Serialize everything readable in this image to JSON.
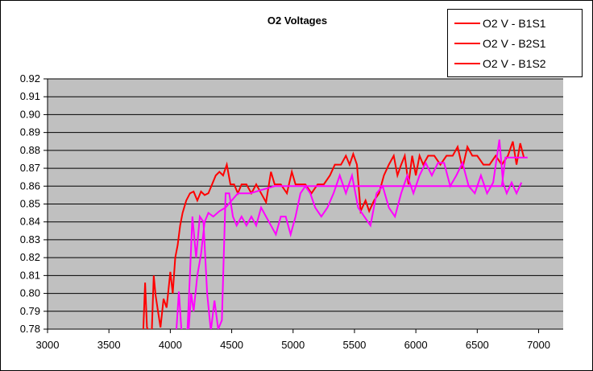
{
  "title": "O2 Voltages",
  "colors": {
    "plot_background": "#c0c0c0",
    "gridline": "#000000",
    "axis_text": "#000000",
    "red_series": "#ff0000",
    "magenta_series": "#ff00ff",
    "legend_key": "#ff0000"
  },
  "legend": {
    "position": "top-right",
    "items": [
      {
        "label": "O2 V - B1S1",
        "key_color": "#ff0000"
      },
      {
        "label": "O2 V - B2S1",
        "key_color": "#ff0000"
      },
      {
        "label": "O2 V - B1S2",
        "key_color": "#ff0000"
      }
    ]
  },
  "chart_data": {
    "type": "line",
    "title": "O2 Voltages",
    "xlabel": "",
    "ylabel": "",
    "grid": true,
    "legend_position": "top-right",
    "plot_background": "#c0c0c0",
    "x_axis": {
      "min": 3000,
      "max": 7200,
      "tick_values": [
        3000,
        3500,
        4000,
        4500,
        5000,
        5500,
        6000,
        6500,
        7000
      ],
      "tick_labels": [
        "3000",
        "3500",
        "4000",
        "4500",
        "5000",
        "5500",
        "6000",
        "6500",
        "7000"
      ]
    },
    "y_axis": {
      "min": 0.78,
      "max": 0.92,
      "tick_step": 0.01,
      "tick_values": [
        0.78,
        0.79,
        0.8,
        0.81,
        0.82,
        0.83,
        0.84,
        0.85,
        0.86,
        0.87,
        0.88,
        0.89,
        0.9,
        0.91,
        0.92
      ],
      "tick_labels": [
        "0.78",
        "0.79",
        "0.80",
        "0.81",
        "0.82",
        "0.83",
        "0.84",
        "0.85",
        "0.86",
        "0.87",
        "0.88",
        "0.89",
        "0.90",
        "0.91",
        "0.92"
      ]
    },
    "series": [
      {
        "name": "O2 V - B1S1",
        "color": "#ff0000",
        "points": [
          [
            3780,
            0.78
          ],
          [
            3795,
            0.806
          ],
          [
            3810,
            0.781
          ],
          [
            3825,
            0.779
          ],
          [
            3850,
            0.78
          ],
          [
            3865,
            0.81
          ],
          [
            3880,
            0.799
          ],
          [
            3900,
            0.79
          ],
          [
            3920,
            0.781
          ],
          [
            3945,
            0.797
          ],
          [
            3970,
            0.792
          ],
          [
            4000,
            0.812
          ],
          [
            4020,
            0.8
          ],
          [
            4040,
            0.82
          ],
          [
            4060,
            0.827
          ],
          [
            4080,
            0.838
          ],
          [
            4100,
            0.845
          ],
          [
            4130,
            0.852
          ],
          [
            4160,
            0.856
          ],
          [
            4190,
            0.857
          ],
          [
            4220,
            0.852
          ],
          [
            4250,
            0.857
          ],
          [
            4280,
            0.855
          ],
          [
            4310,
            0.856
          ],
          [
            4340,
            0.861
          ],
          [
            4370,
            0.866
          ],
          [
            4400,
            0.868
          ],
          [
            4430,
            0.866
          ],
          [
            4460,
            0.872
          ],
          [
            4490,
            0.861
          ],
          [
            4520,
            0.861
          ],
          [
            4550,
            0.856
          ],
          [
            4580,
            0.861
          ],
          [
            4620,
            0.861
          ],
          [
            4660,
            0.856
          ],
          [
            4700,
            0.861
          ],
          [
            4740,
            0.856
          ],
          [
            4780,
            0.851
          ],
          [
            4820,
            0.868
          ],
          [
            4850,
            0.861
          ],
          [
            4900,
            0.861
          ],
          [
            4950,
            0.856
          ],
          [
            4990,
            0.868
          ],
          [
            5020,
            0.861
          ],
          [
            5060,
            0.861
          ],
          [
            5100,
            0.861
          ],
          [
            5150,
            0.856
          ],
          [
            5200,
            0.861
          ],
          [
            5250,
            0.861
          ],
          [
            5300,
            0.866
          ],
          [
            5340,
            0.872
          ],
          [
            5390,
            0.872
          ],
          [
            5430,
            0.877
          ],
          [
            5460,
            0.872
          ],
          [
            5490,
            0.878
          ],
          [
            5520,
            0.872
          ],
          [
            5550,
            0.846
          ],
          [
            5590,
            0.852
          ],
          [
            5620,
            0.846
          ],
          [
            5660,
            0.852
          ],
          [
            5700,
            0.856
          ],
          [
            5740,
            0.866
          ],
          [
            5780,
            0.872
          ],
          [
            5820,
            0.877
          ],
          [
            5850,
            0.866
          ],
          [
            5880,
            0.872
          ],
          [
            5910,
            0.877
          ],
          [
            5940,
            0.861
          ],
          [
            5970,
            0.877
          ],
          [
            6000,
            0.866
          ],
          [
            6030,
            0.877
          ],
          [
            6060,
            0.872
          ],
          [
            6100,
            0.877
          ],
          [
            6150,
            0.877
          ],
          [
            6200,
            0.872
          ],
          [
            6250,
            0.877
          ],
          [
            6300,
            0.877
          ],
          [
            6340,
            0.882
          ],
          [
            6380,
            0.87
          ],
          [
            6420,
            0.882
          ],
          [
            6460,
            0.877
          ],
          [
            6500,
            0.877
          ],
          [
            6550,
            0.872
          ],
          [
            6600,
            0.872
          ],
          [
            6650,
            0.877
          ],
          [
            6700,
            0.872
          ],
          [
            6750,
            0.877
          ],
          [
            6790,
            0.885
          ],
          [
            6820,
            0.872
          ],
          [
            6850,
            0.884
          ],
          [
            6880,
            0.876
          ]
        ]
      },
      {
        "name": "O2 V - B2S1",
        "color": "#ff00ff",
        "points": [
          [
            4050,
            0.78
          ],
          [
            4070,
            0.801
          ],
          [
            4090,
            0.78
          ],
          [
            4110,
            0.779
          ],
          [
            4140,
            0.78
          ],
          [
            4160,
            0.811
          ],
          [
            4180,
            0.843
          ],
          [
            4210,
            0.82
          ],
          [
            4240,
            0.843
          ],
          [
            4270,
            0.84
          ],
          [
            4300,
            0.8
          ],
          [
            4330,
            0.779
          ],
          [
            4360,
            0.796
          ],
          [
            4390,
            0.78
          ],
          [
            4420,
            0.785
          ],
          [
            4450,
            0.856
          ],
          [
            4480,
            0.856
          ],
          [
            4510,
            0.843
          ],
          [
            4540,
            0.838
          ],
          [
            4580,
            0.843
          ],
          [
            4620,
            0.838
          ],
          [
            4660,
            0.843
          ],
          [
            4700,
            0.838
          ],
          [
            4740,
            0.848
          ],
          [
            4780,
            0.843
          ],
          [
            4820,
            0.838
          ],
          [
            4860,
            0.833
          ],
          [
            4900,
            0.843
          ],
          [
            4940,
            0.843
          ],
          [
            4980,
            0.833
          ],
          [
            5020,
            0.843
          ],
          [
            5060,
            0.856
          ],
          [
            5100,
            0.86
          ],
          [
            5140,
            0.856
          ],
          [
            5180,
            0.848
          ],
          [
            5230,
            0.843
          ],
          [
            5280,
            0.848
          ],
          [
            5330,
            0.856
          ],
          [
            5380,
            0.866
          ],
          [
            5430,
            0.856
          ],
          [
            5480,
            0.866
          ],
          [
            5530,
            0.848
          ],
          [
            5580,
            0.843
          ],
          [
            5630,
            0.838
          ],
          [
            5680,
            0.856
          ],
          [
            5730,
            0.86
          ],
          [
            5780,
            0.848
          ],
          [
            5830,
            0.843
          ],
          [
            5880,
            0.856
          ],
          [
            5930,
            0.866
          ],
          [
            5980,
            0.856
          ],
          [
            6030,
            0.866
          ],
          [
            6080,
            0.873
          ],
          [
            6130,
            0.866
          ],
          [
            6180,
            0.873
          ],
          [
            6230,
            0.873
          ],
          [
            6280,
            0.86
          ],
          [
            6330,
            0.866
          ],
          [
            6380,
            0.873
          ],
          [
            6430,
            0.86
          ],
          [
            6480,
            0.856
          ],
          [
            6530,
            0.866
          ],
          [
            6580,
            0.856
          ],
          [
            6630,
            0.862
          ],
          [
            6680,
            0.886
          ],
          [
            6710,
            0.862
          ],
          [
            6740,
            0.856
          ],
          [
            6780,
            0.862
          ],
          [
            6820,
            0.856
          ],
          [
            6860,
            0.862
          ]
        ]
      },
      {
        "name": "O2 V - B1S2",
        "color": "#ff00ff",
        "points": [
          [
            4150,
            0.78
          ],
          [
            4170,
            0.8
          ],
          [
            4190,
            0.79
          ],
          [
            4220,
            0.81
          ],
          [
            4250,
            0.822
          ],
          [
            4280,
            0.84
          ],
          [
            4310,
            0.845
          ],
          [
            4350,
            0.843
          ],
          [
            4400,
            0.846
          ],
          [
            4450,
            0.848
          ],
          [
            4500,
            0.852
          ],
          [
            4550,
            0.856
          ],
          [
            4650,
            0.856
          ],
          [
            4750,
            0.858
          ],
          [
            4850,
            0.86
          ],
          [
            5000,
            0.86
          ],
          [
            5200,
            0.86
          ],
          [
            5400,
            0.86
          ],
          [
            5600,
            0.86
          ],
          [
            5800,
            0.86
          ],
          [
            6000,
            0.86
          ],
          [
            6200,
            0.86
          ],
          [
            6400,
            0.86
          ],
          [
            6600,
            0.86
          ],
          [
            6700,
            0.86
          ],
          [
            6730,
            0.876
          ],
          [
            6800,
            0.876
          ],
          [
            6860,
            0.876
          ],
          [
            6910,
            0.876
          ]
        ]
      }
    ]
  }
}
